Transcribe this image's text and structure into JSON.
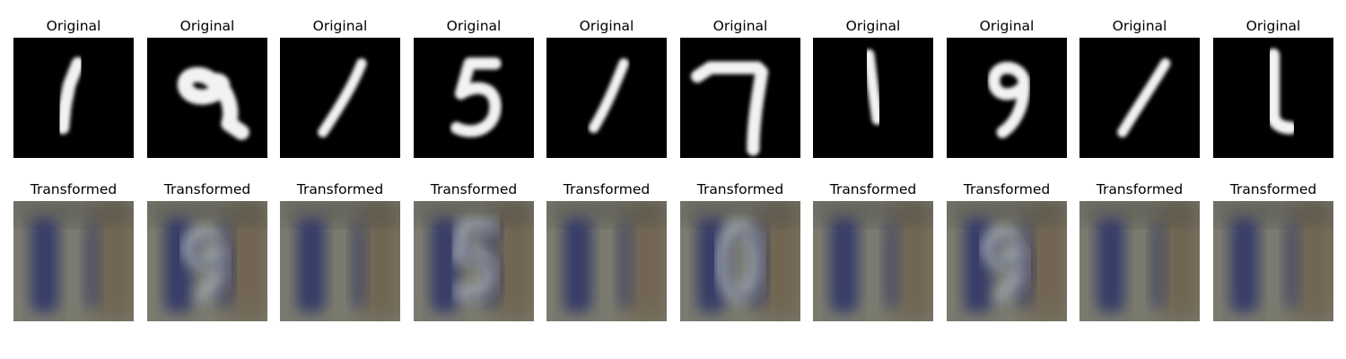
{
  "figure": {
    "rows": [
      {
        "title": "Original",
        "kind": "mnist",
        "panels": [
          {
            "digit": "1",
            "image": "white-digit-1-on-black"
          },
          {
            "digit": "9",
            "image": "white-digit-9-on-black"
          },
          {
            "digit": "1",
            "image": "white-digit-1-on-black"
          },
          {
            "digit": "5",
            "image": "white-digit-5-on-black"
          },
          {
            "digit": "1",
            "image": "white-digit-1-on-black"
          },
          {
            "digit": "7",
            "image": "white-digit-7-on-black"
          },
          {
            "digit": "1",
            "image": "white-digit-1-on-black"
          },
          {
            "digit": "9",
            "image": "white-digit-9-on-black"
          },
          {
            "digit": "1",
            "image": "white-digit-1-on-black"
          },
          {
            "digit": "1",
            "image": "white-digit-1-on-black"
          }
        ]
      },
      {
        "title": "Transformed",
        "kind": "svhn-like",
        "panels": [
          {
            "digit": "1",
            "image": "blurry-house-number-1"
          },
          {
            "digit": "9",
            "image": "blurry-house-number-9"
          },
          {
            "digit": "1",
            "image": "blurry-house-number-1"
          },
          {
            "digit": "5",
            "image": "blurry-house-number-5"
          },
          {
            "digit": "1",
            "image": "blurry-house-number-1"
          },
          {
            "digit": "0",
            "image": "blurry-house-number-0"
          },
          {
            "digit": "1",
            "image": "blurry-house-number-1"
          },
          {
            "digit": "9",
            "image": "blurry-house-number-9"
          },
          {
            "digit": "1",
            "image": "blurry-house-number-1"
          },
          {
            "digit": "1",
            "image": "blurry-house-number-1"
          }
        ]
      }
    ],
    "colors": {
      "mnist_bg": "#000000",
      "mnist_fg": "#f2f2f2",
      "svhn_bg": "#7a7a6e",
      "svhn_dark": "#2f3468",
      "svhn_light": "#b7c0c8",
      "svhn_warm": "#6e5f4a"
    }
  }
}
